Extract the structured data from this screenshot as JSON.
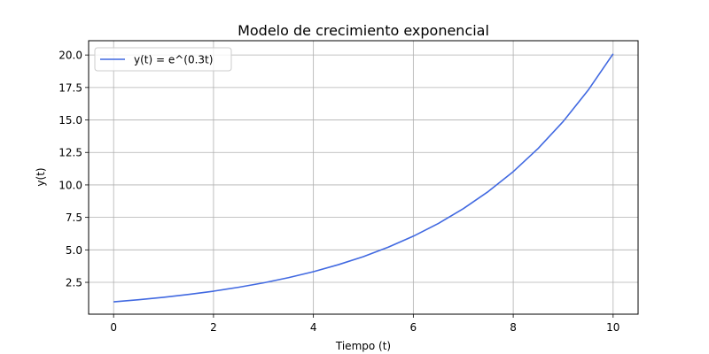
{
  "chart_data": {
    "type": "line",
    "title": "Modelo de crecimiento exponencial",
    "xlabel": "Tiempo (t)",
    "ylabel": "y(t)",
    "xlim": [
      -0.5,
      10.5
    ],
    "ylim": [
      0.05,
      21.1
    ],
    "xticks": [
      0,
      2,
      4,
      6,
      8,
      10
    ],
    "yticks": [
      2.5,
      5.0,
      7.5,
      10.0,
      12.5,
      15.0,
      17.5,
      20.0
    ],
    "xtick_labels": [
      "0",
      "2",
      "4",
      "6",
      "8",
      "10"
    ],
    "ytick_labels": [
      "2.5",
      "5.0",
      "7.5",
      "10.0",
      "12.5",
      "15.0",
      "17.5",
      "20.0"
    ],
    "grid": true,
    "legend_position": "upper-left",
    "series": [
      {
        "name": "y(t) = e^(0.3t)",
        "color": "#4169e1",
        "x": [
          0,
          0.5,
          1,
          1.5,
          2,
          2.5,
          3,
          3.5,
          4,
          4.5,
          5,
          5.5,
          6,
          6.5,
          7,
          7.5,
          8,
          8.5,
          9,
          9.5,
          10
        ],
        "y": [
          1.0,
          1.16,
          1.35,
          1.57,
          1.82,
          2.12,
          2.46,
          2.86,
          3.32,
          3.86,
          4.48,
          5.21,
          6.05,
          7.03,
          8.17,
          9.49,
          11.02,
          12.81,
          14.88,
          17.29,
          20.09
        ]
      }
    ]
  }
}
